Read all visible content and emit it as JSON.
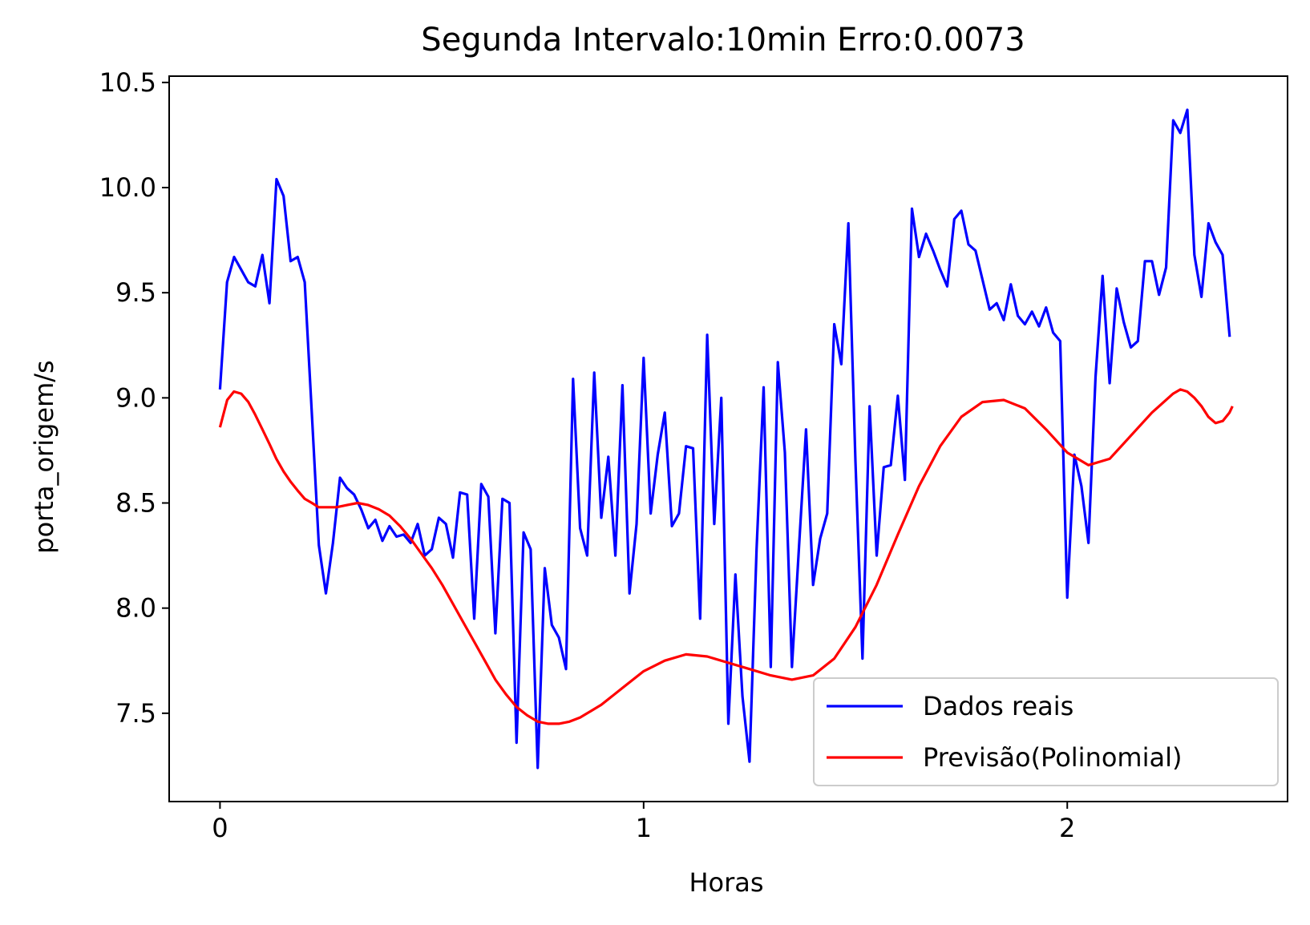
{
  "chart_data": {
    "type": "line",
    "title": "Segunda Intervalo:10min Erro:0.0073",
    "xlabel": "Horas",
    "ylabel": "porta_origem/s",
    "xlim": [
      -0.12,
      2.52
    ],
    "ylim": [
      7.08,
      10.53
    ],
    "xticks": [
      0,
      1,
      2
    ],
    "xtick_labels": [
      "0",
      "1",
      "2"
    ],
    "yticks": [
      7.5,
      8.0,
      8.5,
      9.0,
      9.5,
      10.0,
      10.5
    ],
    "ytick_labels": [
      "7.5",
      "8.0",
      "8.5",
      "9.0",
      "9.5",
      "10.0",
      "10.5"
    ],
    "grid": false,
    "legend_position": "bottom-right",
    "series": [
      {
        "name": "Dados reais",
        "color": "#0000ff",
        "x_start": 0,
        "x_step": 0.016667,
        "values": [
          9.04,
          9.55,
          9.67,
          9.61,
          9.55,
          9.53,
          9.68,
          9.45,
          10.04,
          9.96,
          9.65,
          9.67,
          9.55,
          8.93,
          8.3,
          8.07,
          8.31,
          8.62,
          8.57,
          8.54,
          8.47,
          8.38,
          8.42,
          8.32,
          8.39,
          8.34,
          8.35,
          8.31,
          8.4,
          8.25,
          8.28,
          8.43,
          8.4,
          8.24,
          8.55,
          8.54,
          7.95,
          8.59,
          8.53,
          7.88,
          8.52,
          8.5,
          7.36,
          8.36,
          8.28,
          7.24,
          8.19,
          7.92,
          7.86,
          7.71,
          9.09,
          8.38,
          8.25,
          9.12,
          8.43,
          8.72,
          8.25,
          9.06,
          8.07,
          8.4,
          9.19,
          8.45,
          8.73,
          8.93,
          8.39,
          8.45,
          8.77,
          8.76,
          7.95,
          9.3,
          8.4,
          9.0,
          7.45,
          8.16,
          7.58,
          7.27,
          8.28,
          9.05,
          7.72,
          9.17,
          8.74,
          7.72,
          8.29,
          8.85,
          8.11,
          8.33,
          8.45,
          9.35,
          9.16,
          9.83,
          8.7,
          7.76,
          8.96,
          8.25,
          8.67,
          8.68,
          9.01,
          8.61,
          9.9,
          9.67,
          9.78,
          9.7,
          9.61,
          9.53,
          9.85,
          9.89,
          9.73,
          9.7,
          9.56,
          9.42,
          9.45,
          9.37,
          9.54,
          9.39,
          9.35,
          9.41,
          9.34,
          9.43,
          9.31,
          9.27,
          8.05,
          8.73,
          8.58,
          8.31,
          9.1,
          9.58,
          9.07,
          9.52,
          9.36,
          9.24,
          9.27,
          9.65,
          9.65,
          9.49,
          9.62,
          10.32,
          10.26,
          10.37,
          9.68,
          9.48,
          9.83,
          9.74,
          9.68,
          9.29
        ]
      },
      {
        "name": "Previsão(Polinomial)",
        "color": "#ff0000",
        "x": [
          0,
          0.017,
          0.033,
          0.05,
          0.067,
          0.083,
          0.1,
          0.117,
          0.133,
          0.15,
          0.167,
          0.183,
          0.2,
          0.217,
          0.233,
          0.25,
          0.275,
          0.3,
          0.325,
          0.35,
          0.375,
          0.4,
          0.425,
          0.45,
          0.475,
          0.5,
          0.525,
          0.55,
          0.575,
          0.6,
          0.625,
          0.65,
          0.675,
          0.7,
          0.725,
          0.75,
          0.775,
          0.8,
          0.825,
          0.85,
          0.875,
          0.9,
          0.95,
          1.0,
          1.05,
          1.1,
          1.15,
          1.2,
          1.25,
          1.3,
          1.35,
          1.4,
          1.45,
          1.5,
          1.55,
          1.6,
          1.65,
          1.7,
          1.75,
          1.8,
          1.85,
          1.9,
          1.95,
          2.0,
          2.05,
          2.1,
          2.15,
          2.2,
          2.25,
          2.267,
          2.283,
          2.3,
          2.317,
          2.333,
          2.35,
          2.367,
          2.383,
          2.39
        ],
        "values": [
          8.86,
          8.99,
          9.03,
          9.02,
          8.98,
          8.92,
          8.85,
          8.78,
          8.71,
          8.65,
          8.6,
          8.56,
          8.52,
          8.5,
          8.48,
          8.48,
          8.48,
          8.49,
          8.5,
          8.49,
          8.47,
          8.44,
          8.39,
          8.33,
          8.26,
          8.19,
          8.11,
          8.02,
          7.93,
          7.84,
          7.75,
          7.66,
          7.59,
          7.53,
          7.49,
          7.46,
          7.45,
          7.45,
          7.46,
          7.48,
          7.51,
          7.54,
          7.62,
          7.7,
          7.75,
          7.78,
          7.77,
          7.74,
          7.71,
          7.68,
          7.66,
          7.68,
          7.76,
          7.91,
          8.11,
          8.35,
          8.58,
          8.77,
          8.91,
          8.98,
          8.99,
          8.95,
          8.85,
          8.74,
          8.68,
          8.71,
          8.82,
          8.93,
          9.02,
          9.04,
          9.03,
          9.0,
          8.96,
          8.91,
          8.88,
          8.89,
          8.93,
          8.96
        ]
      }
    ]
  }
}
